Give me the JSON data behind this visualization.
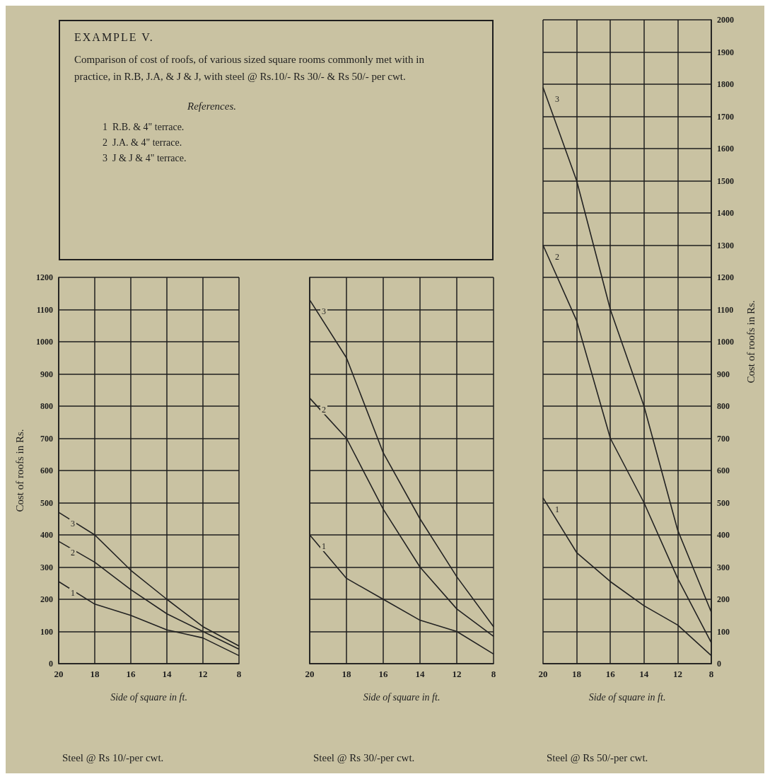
{
  "chart_data": [
    {
      "type": "other",
      "title": "EXAMPLE V.",
      "subtitle": "Comparison of cost of roofs, of various sized square rooms commonly met with in practice, in R.B, J.A, & J & J, with steel @ Rs.10/- Rs 30/- & Rs 50/- per cwt.",
      "legend_title": "References.",
      "annotations": [
        "1  R.B. & 4\" terrace.",
        "2  J.A. & 4\" terrace.",
        "3  J & J & 4\" terrace."
      ]
    },
    {
      "type": "line",
      "title": "Steel @ Rs 10/-per cwt.",
      "xlabel": "Side of square in ft.",
      "ylabel": "Cost of roofs in Rs.",
      "categories": [
        "20",
        "18",
        "16",
        "14",
        "12",
        "8"
      ],
      "series": [
        {
          "name": "1",
          "color": "#222222",
          "values": [
            255,
            185,
            150,
            105,
            80,
            25
          ]
        },
        {
          "name": "2",
          "color": "#222222",
          "values": [
            380,
            315,
            230,
            155,
            100,
            45
          ]
        },
        {
          "name": "3",
          "color": "#222222",
          "values": [
            470,
            400,
            290,
            200,
            115,
            55
          ]
        }
      ],
      "ylim": [
        0,
        1200
      ],
      "yticks": [
        0,
        100,
        200,
        300,
        400,
        500,
        600,
        700,
        800,
        900,
        1000,
        1100,
        1200
      ],
      "grid": true
    },
    {
      "type": "line",
      "title": "Steel @ Rs 30/-per cwt.",
      "xlabel": "Side of square in ft.",
      "categories": [
        "20",
        "18",
        "16",
        "14",
        "12",
        "8"
      ],
      "series": [
        {
          "name": "1",
          "color": "#222222",
          "values": [
            400,
            265,
            200,
            135,
            100,
            30
          ]
        },
        {
          "name": "2",
          "color": "#222222",
          "values": [
            825,
            700,
            480,
            300,
            170,
            85
          ]
        },
        {
          "name": "3",
          "color": "#222222",
          "values": [
            1130,
            950,
            655,
            450,
            270,
            115
          ]
        }
      ],
      "ylim": [
        0,
        1200
      ],
      "yticks": [
        0,
        100,
        200,
        300,
        400,
        500,
        600,
        700,
        800,
        900,
        1000,
        1100,
        1200
      ],
      "tick_labels": "x",
      "grid": true
    },
    {
      "type": "line",
      "title": "Steel @ Rs 50/-per cwt.",
      "xlabel": "Side of square in ft.",
      "ylabel": "Cost of roofs in Rs.",
      "categories": [
        "20",
        "18",
        "16",
        "14",
        "12",
        "8"
      ],
      "series": [
        {
          "name": "1",
          "color": "#222222",
          "values": [
            515,
            345,
            255,
            180,
            120,
            25
          ]
        },
        {
          "name": "2",
          "color": "#222222",
          "values": [
            1300,
            1065,
            700,
            500,
            265,
            65
          ]
        },
        {
          "name": "3",
          "color": "#222222",
          "values": [
            1790,
            1500,
            1100,
            800,
            415,
            160
          ]
        }
      ],
      "ylim": [
        0,
        2000
      ],
      "yticks": [
        0,
        100,
        200,
        300,
        400,
        500,
        600,
        700,
        800,
        900,
        1000,
        1100,
        1200,
        1300,
        1400,
        1500,
        1600,
        1700,
        1800,
        1900,
        2000
      ],
      "grid": true
    }
  ]
}
